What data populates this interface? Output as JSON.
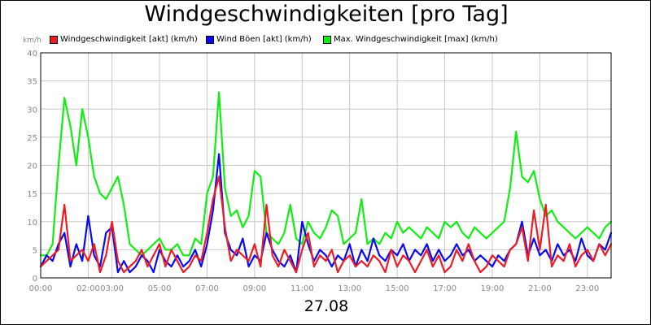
{
  "chart_data": {
    "type": "line",
    "title": "Windgeschwindigkeiten [pro Tag]",
    "date_label": "27.08",
    "ylabel": "km/h",
    "xlabel": "",
    "ylim": [
      0,
      40
    ],
    "xlim": [
      0,
      24
    ],
    "y_ticks": [
      0,
      5,
      10,
      15,
      20,
      25,
      30,
      35,
      40
    ],
    "x_ticks": [
      {
        "label": "00:00",
        "value": 0
      },
      {
        "label": "02:00",
        "value": 2
      },
      {
        "label": "03:00",
        "value": 3
      },
      {
        "label": "05:00",
        "value": 5
      },
      {
        "label": "07:00",
        "value": 7
      },
      {
        "label": "09:00",
        "value": 9
      },
      {
        "label": "11:00",
        "value": 11
      },
      {
        "label": "13:00",
        "value": 13
      },
      {
        "label": "15:00",
        "value": 15
      },
      {
        "label": "17:00",
        "value": 17
      },
      {
        "label": "19:00",
        "value": 19
      },
      {
        "label": "21:00",
        "value": 21
      },
      {
        "label": "23:00",
        "value": 23
      }
    ],
    "grid": true,
    "legend_position": "top-left",
    "x_hours": [
      0.0,
      0.25,
      0.5,
      0.75,
      1.0,
      1.25,
      1.5,
      1.75,
      2.0,
      2.25,
      2.5,
      2.75,
      3.0,
      3.25,
      3.5,
      3.75,
      4.0,
      4.25,
      4.5,
      4.75,
      5.0,
      5.25,
      5.5,
      5.75,
      6.0,
      6.25,
      6.5,
      6.75,
      7.0,
      7.25,
      7.5,
      7.75,
      8.0,
      8.25,
      8.5,
      8.75,
      9.0,
      9.25,
      9.5,
      9.75,
      10.0,
      10.25,
      10.5,
      10.75,
      11.0,
      11.25,
      11.5,
      11.75,
      12.0,
      12.25,
      12.5,
      12.75,
      13.0,
      13.25,
      13.5,
      13.75,
      14.0,
      14.25,
      14.5,
      14.75,
      15.0,
      15.25,
      15.5,
      15.75,
      16.0,
      16.25,
      16.5,
      16.75,
      17.0,
      17.25,
      17.5,
      17.75,
      18.0,
      18.25,
      18.5,
      18.75,
      19.0,
      19.25,
      19.5,
      19.75,
      20.0,
      20.25,
      20.5,
      20.75,
      21.0,
      21.25,
      21.5,
      21.75,
      22.0,
      22.25,
      22.5,
      22.75,
      23.0,
      23.25,
      23.5,
      23.75,
      24.0
    ],
    "series": [
      {
        "name": "Windgeschwindigkeit [akt] (km/h)",
        "color": "#ee1c25",
        "values": [
          2,
          3,
          4,
          5,
          13,
          3,
          4,
          5,
          3,
          6,
          1,
          4,
          10,
          3,
          1,
          2,
          3,
          5,
          2,
          4,
          6,
          2,
          5,
          3,
          1,
          2,
          4,
          3,
          8,
          14,
          18,
          9,
          3,
          5,
          4,
          3,
          6,
          2,
          13,
          4,
          2,
          5,
          3,
          1,
          5,
          8,
          2,
          4,
          3,
          5,
          1,
          3,
          4,
          2,
          3,
          2,
          4,
          3,
          1,
          5,
          2,
          4,
          3,
          1,
          3,
          5,
          2,
          4,
          1,
          2,
          5,
          3,
          6,
          3,
          1,
          2,
          4,
          3,
          2,
          5,
          6,
          9,
          3,
          12,
          5,
          13,
          2,
          4,
          3,
          6,
          2,
          4,
          5,
          3,
          6,
          4,
          6
        ]
      },
      {
        "name": "Wind Böen [akt] (km/h)",
        "color": "#0a0aee",
        "values": [
          2,
          4,
          3,
          6,
          8,
          2,
          6,
          3,
          11,
          4,
          2,
          8,
          9,
          1,
          3,
          1,
          2,
          4,
          3,
          1,
          5,
          3,
          2,
          4,
          2,
          3,
          5,
          2,
          6,
          12,
          22,
          8,
          5,
          4,
          7,
          2,
          4,
          3,
          8,
          5,
          3,
          2,
          4,
          1,
          10,
          6,
          3,
          5,
          4,
          2,
          4,
          3,
          6,
          2,
          5,
          3,
          7,
          4,
          3,
          5,
          4,
          6,
          3,
          5,
          4,
          6,
          3,
          5,
          3,
          4,
          6,
          4,
          5,
          3,
          4,
          3,
          2,
          4,
          3,
          5,
          6,
          10,
          4,
          7,
          4,
          5,
          3,
          6,
          4,
          5,
          3,
          7,
          4,
          3,
          6,
          5,
          8
        ]
      },
      {
        "name": "Max. Windgeschwindigkeit [max] (km/h)",
        "color": "#11ee11",
        "values": [
          4,
          4,
          6,
          20,
          32,
          27,
          20,
          30,
          25,
          18,
          15,
          14,
          16,
          18,
          13,
          6,
          5,
          4,
          5,
          6,
          7,
          5,
          5,
          6,
          4,
          4,
          7,
          6,
          15,
          18,
          33,
          16,
          11,
          12,
          9,
          11,
          19,
          18,
          8,
          7,
          6,
          8,
          13,
          7,
          6,
          10,
          8,
          7,
          9,
          12,
          11,
          6,
          7,
          8,
          14,
          6,
          7,
          6,
          8,
          7,
          10,
          8,
          9,
          8,
          7,
          9,
          8,
          7,
          10,
          9,
          10,
          8,
          7,
          9,
          8,
          7,
          8,
          9,
          10,
          16,
          26,
          18,
          17,
          19,
          14,
          11,
          12,
          10,
          9,
          8,
          7,
          8,
          9,
          8,
          7,
          9,
          10
        ]
      }
    ]
  }
}
